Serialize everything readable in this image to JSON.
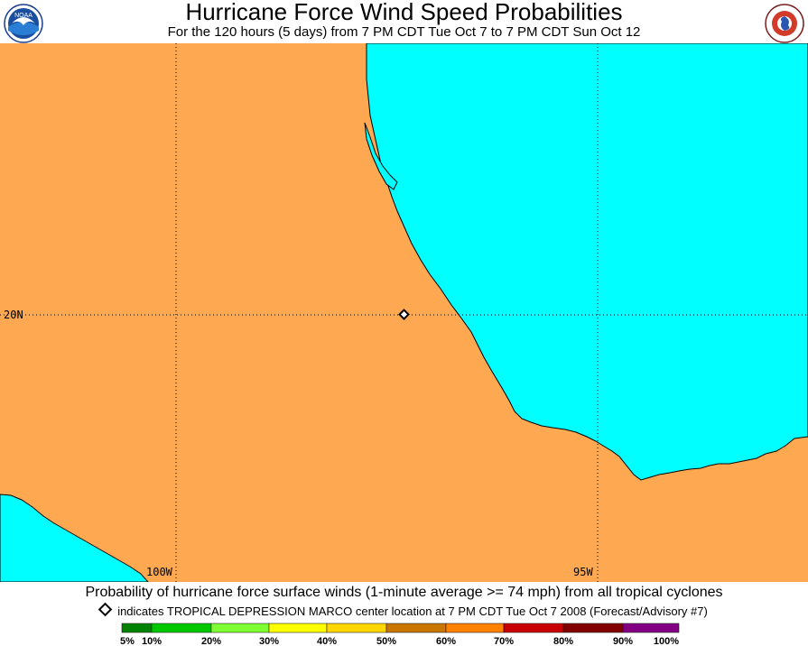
{
  "header": {
    "title": "Hurricane Force Wind Speed Probabilities",
    "subtitle": "For the 120 hours (5 days) from 7 PM CDT Tue Oct 7 to 7 PM CDT Sun Oct 12",
    "left_logo_text": "NOAA",
    "right_logo_text": "NATIONAL WEATHER SERVICE"
  },
  "map": {
    "land_color": "#FFA852",
    "water_color": "#00FFFF",
    "gridlines": {
      "lat_labels": [
        "20N"
      ],
      "lon_labels": [
        "100W",
        "95W"
      ]
    },
    "storm_marker": {
      "symbol": "diamond-icon",
      "lat": 20.0,
      "lon": -97.3
    }
  },
  "footer": {
    "caption": "Probability of hurricane force surface winds (1-minute average >= 74 mph) from all tropical cyclones",
    "note": "indicates TROPICAL DEPRESSION MARCO center location at 7 PM CDT Tue Oct 7 2008 (Forecast/Advisory #7)"
  },
  "legend": {
    "colors": [
      "#008200",
      "#00C800",
      "#7FFF33",
      "#FFFF00",
      "#FFD700",
      "#C87800",
      "#FF8200",
      "#C80000",
      "#820000",
      "#820082"
    ],
    "labels": [
      "5%",
      "10%",
      "20%",
      "30%",
      "40%",
      "50%",
      "60%",
      "70%",
      "80%",
      "90%",
      "100%"
    ]
  }
}
